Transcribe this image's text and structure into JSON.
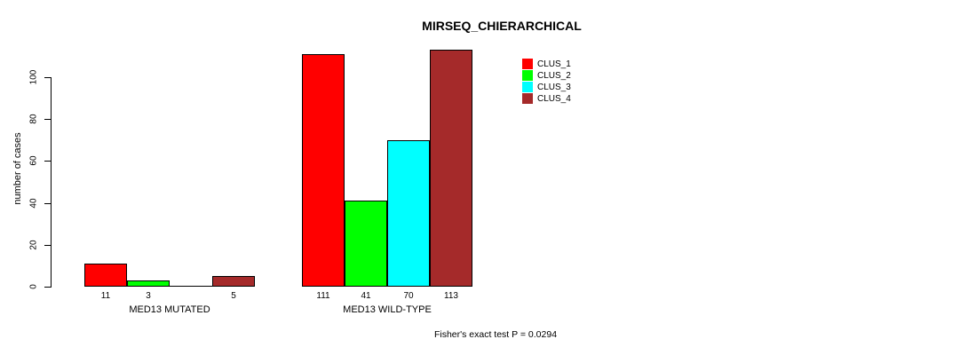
{
  "chart_data": {
    "type": "bar",
    "title": "MIRSEQ_CHIERARCHICAL",
    "xlabel": "",
    "ylabel": "number of cases",
    "categories": [
      "MED13 MUTATED",
      "MED13 WILD-TYPE"
    ],
    "series": [
      {
        "name": "CLUS_1",
        "color": "#FF0000",
        "values": [
          11,
          111
        ]
      },
      {
        "name": "CLUS_2",
        "color": "#00FF00",
        "values": [
          3,
          41
        ]
      },
      {
        "name": "CLUS_3",
        "color": "#00FFFF",
        "values": [
          0,
          70
        ]
      },
      {
        "name": "CLUS_4",
        "color": "#A52A2A",
        "values": [
          5,
          113
        ]
      }
    ],
    "bar_labels": [
      [
        "11",
        "3",
        "",
        "5"
      ],
      [
        "111",
        "41",
        "70",
        "113"
      ]
    ],
    "yticks": [
      0,
      20,
      40,
      60,
      80,
      100
    ],
    "ylim": [
      0,
      115
    ],
    "grid": false,
    "legend_position": "top-right",
    "legend_entries": [
      "CLUS_1",
      "CLUS_2",
      "CLUS_3",
      "CLUS_4"
    ],
    "annotation": "Fisher's exact test P = 0.0294"
  },
  "colors": {
    "background": "#FFFFFF",
    "text": "#000000",
    "bar_border": "#000000",
    "clus_1": "#FF0000",
    "clus_2": "#00FF00",
    "clus_3": "#00FFFF",
    "clus_4": "#A52A2A"
  }
}
